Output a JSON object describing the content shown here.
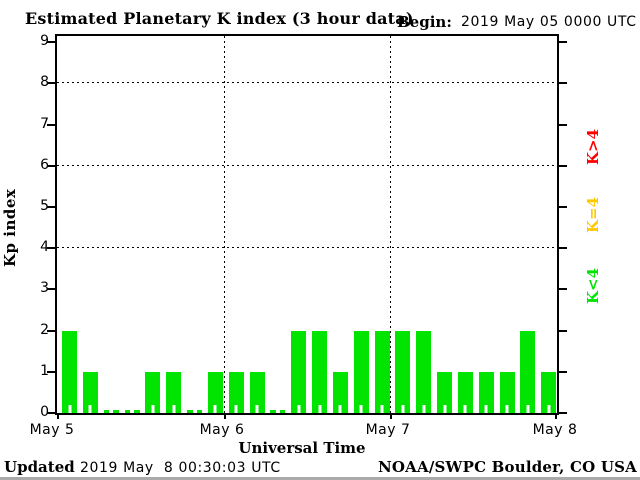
{
  "header": {
    "title": "Estimated Planetary K index (3 hour data)",
    "begin_label": "Begin:",
    "begin_value": "2019 May 05 0000 UTC"
  },
  "y_axis": {
    "label": "Kp index",
    "tick_labels": [
      "0",
      "1",
      "2",
      "3",
      "4",
      "5",
      "6",
      "7",
      "8",
      "9"
    ]
  },
  "x_axis": {
    "label": "Universal Time",
    "tick_labels": [
      "May 5",
      "May 6",
      "May 7",
      "May 8"
    ]
  },
  "legend": {
    "items": [
      {
        "label": "K>4",
        "color": "#ff0000"
      },
      {
        "label": "K=4",
        "color": "#ffc800"
      },
      {
        "label": "K<4",
        "color": "#00e400"
      }
    ]
  },
  "footer": {
    "updated_label": "Updated",
    "updated_value": "2019 May  8 00:30:03 UTC",
    "credit": "NOAA/SWPC Boulder, CO USA"
  },
  "chart_data": {
    "type": "bar",
    "title": "Estimated Planetary K index (3 hour data)",
    "xlabel": "Universal Time",
    "ylabel": "Kp index",
    "begin": "2019 May 05 0000 UTC",
    "interval_hours": 3,
    "ylim": [
      0,
      9
    ],
    "days": [
      "May 5",
      "May 6",
      "May 7"
    ],
    "categories": [
      "May 5 00",
      "May 5 03",
      "May 5 06",
      "May 5 09",
      "May 5 12",
      "May 5 15",
      "May 5 18",
      "May 5 21",
      "May 6 00",
      "May 6 03",
      "May 6 06",
      "May 6 09",
      "May 6 12",
      "May 6 15",
      "May 6 18",
      "May 6 21",
      "May 7 00",
      "May 7 03",
      "May 7 06",
      "May 7 09",
      "May 7 12",
      "May 7 15",
      "May 7 18",
      "May 7 21"
    ],
    "values": [
      2,
      1,
      0,
      0,
      1,
      1,
      0,
      1,
      1,
      1,
      0,
      2,
      2,
      1,
      2,
      2,
      2,
      2,
      1,
      1,
      1,
      1,
      2,
      1
    ],
    "bar_color": "#00e400",
    "dotted_hlines_at_kp": [
      4,
      6,
      8
    ],
    "dotted_vlines_at": [
      "May 6",
      "May 7"
    ],
    "grid": "dotted",
    "legend_position": "right"
  }
}
